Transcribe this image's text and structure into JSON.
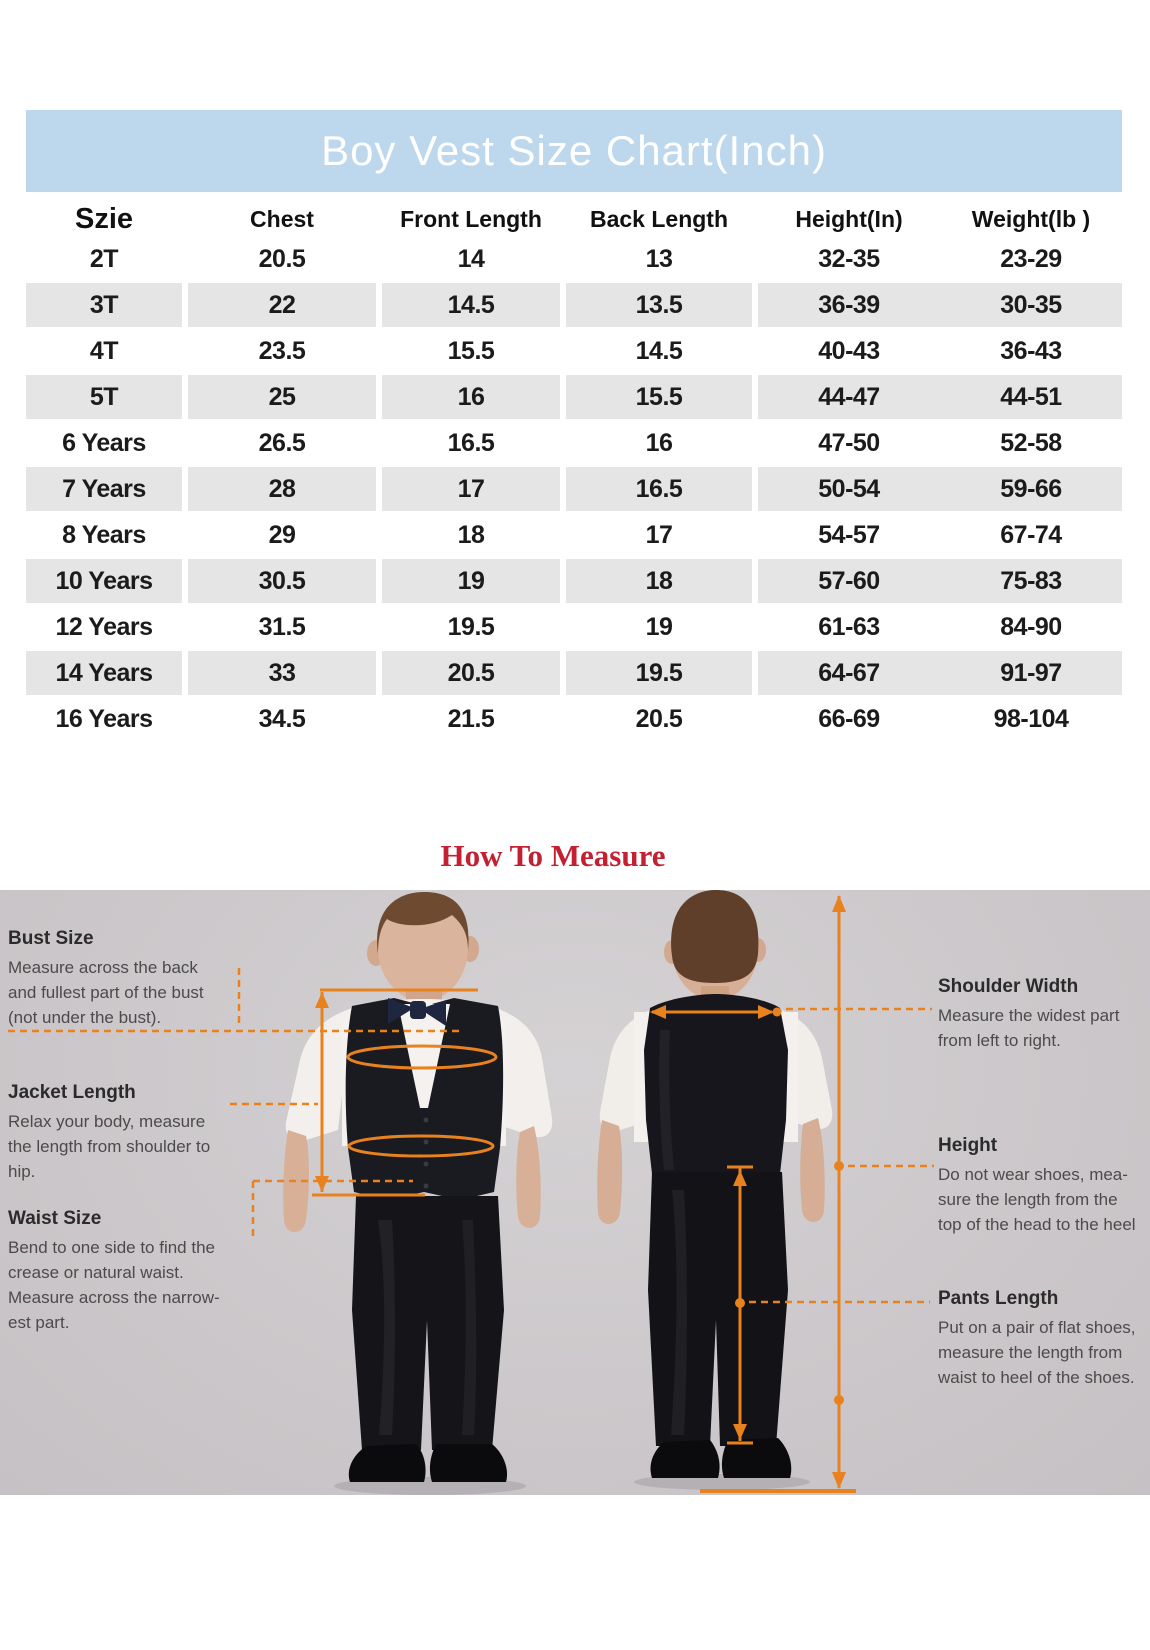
{
  "page_title": "Boy Vest Size Chart(Inch)",
  "colors": {
    "header_band_blue": "#bdd7ec",
    "row_stripe_gray": "#e6e5e5",
    "measure_title_red": "#c32032",
    "measure_line_orange": "#e8821f"
  },
  "size_table": {
    "columns": [
      "Szie",
      "Chest",
      "Front Length",
      "Back Length",
      "Height(In)",
      "Weight(lb )"
    ],
    "rows": [
      {
        "size": "2T",
        "chest": "20.5",
        "front_length": "14",
        "back_length": "13",
        "height": "32-35",
        "weight": "23-29"
      },
      {
        "size": "3T",
        "chest": "22",
        "front_length": "14.5",
        "back_length": "13.5",
        "height": "36-39",
        "weight": "30-35"
      },
      {
        "size": "4T",
        "chest": "23.5",
        "front_length": "15.5",
        "back_length": "14.5",
        "height": "40-43",
        "weight": "36-43"
      },
      {
        "size": "5T",
        "chest": "25",
        "front_length": "16",
        "back_length": "15.5",
        "height": "44-47",
        "weight": "44-51"
      },
      {
        "size": "6 Years",
        "chest": "26.5",
        "front_length": "16.5",
        "back_length": "16",
        "height": "47-50",
        "weight": "52-58"
      },
      {
        "size": "7 Years",
        "chest": "28",
        "front_length": "17",
        "back_length": "16.5",
        "height": "50-54",
        "weight": "59-66"
      },
      {
        "size": "8 Years",
        "chest": "29",
        "front_length": "18",
        "back_length": "17",
        "height": "54-57",
        "weight": "67-74"
      },
      {
        "size": "10 Years",
        "chest": "30.5",
        "front_length": "19",
        "back_length": "18",
        "height": "57-60",
        "weight": "75-83"
      },
      {
        "size": "12 Years",
        "chest": "31.5",
        "front_length": "19.5",
        "back_length": "19",
        "height": "61-63",
        "weight": "84-90"
      },
      {
        "size": "14 Years",
        "chest": "33",
        "front_length": "20.5",
        "back_length": "19.5",
        "height": "64-67",
        "weight": "91-97"
      },
      {
        "size": "16 Years",
        "chest": "34.5",
        "front_length": "21.5",
        "back_length": "20.5",
        "height": "66-69",
        "weight": "98-104"
      }
    ]
  },
  "measure": {
    "title": "How To Measure",
    "left": [
      {
        "heading": "Bust Size",
        "lines": [
          "Measure across the back",
          "and fullest part of the bust",
          "(not under the bust)."
        ]
      },
      {
        "heading": "Jacket Length",
        "lines": [
          "Relax your body, measure",
          "the length from shoulder to",
          "hip."
        ]
      },
      {
        "heading": "Waist Size",
        "lines": [
          "Bend to one side to find the",
          "crease or natural waist.",
          "Measure across the narrow-",
          "est part."
        ]
      }
    ],
    "right": [
      {
        "heading": "Shoulder Width",
        "lines": [
          "Measure the widest part",
          "from left to right."
        ]
      },
      {
        "heading": "Height",
        "lines": [
          "Do not wear shoes, mea-",
          "sure the length from the",
          "top of the head to the heel"
        ]
      },
      {
        "heading": "Pants Length",
        "lines": [
          "Put on a pair of flat shoes,",
          "measure the length from",
          "waist to heel of the shoes."
        ]
      }
    ]
  }
}
